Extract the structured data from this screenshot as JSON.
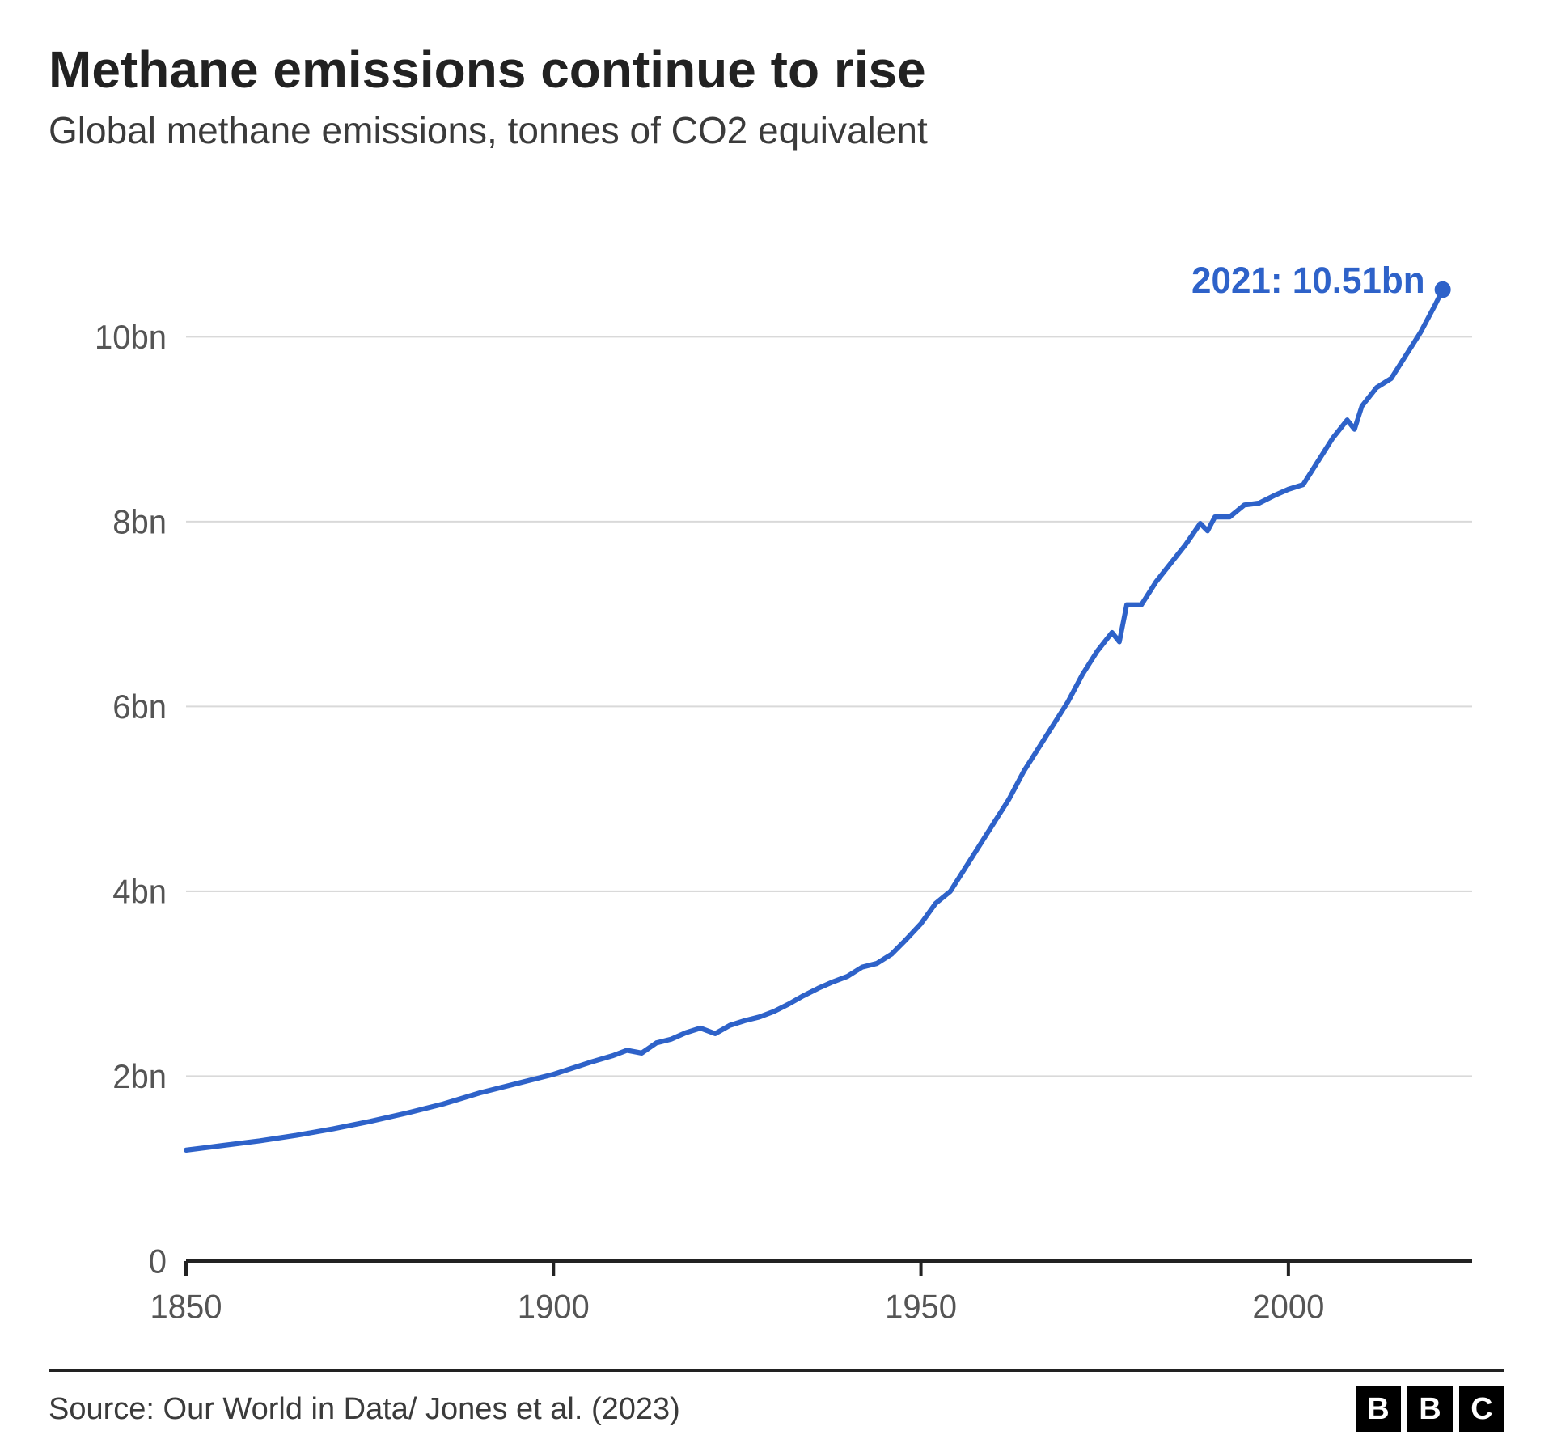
{
  "header": {
    "title": "Methane emissions continue to rise",
    "subtitle": "Global methane emissions, tonnes of CO2 equivalent"
  },
  "footer": {
    "source": "Source: Our World in Data/ Jones et al. (2023)",
    "brand_letters": [
      "B",
      "B",
      "C"
    ]
  },
  "chart": {
    "type": "line",
    "background_color": "#ffffff",
    "grid_color": "#d9d9d9",
    "axis_color": "#222222",
    "axis_label_color": "#555555",
    "line_color": "#2e62c9",
    "line_width": 6,
    "end_marker_radius": 10,
    "end_label_text": "2021: 10.51bn",
    "end_label_color": "#2e62c9",
    "end_label_fontsize": 44,
    "axis_label_fontsize": 40,
    "x": {
      "lim": [
        1850,
        2025
      ],
      "ticks": [
        1850,
        1900,
        1950,
        2000
      ],
      "tick_labels": [
        "1850",
        "1900",
        "1950",
        "2000"
      ]
    },
    "y": {
      "lim": [
        0,
        11
      ],
      "ticks": [
        0,
        2,
        4,
        6,
        8,
        10
      ],
      "tick_labels": [
        "0",
        "2bn",
        "4bn",
        "6bn",
        "8bn",
        "10bn"
      ],
      "grid_at": [
        2,
        4,
        6,
        8,
        10
      ]
    },
    "series": {
      "x": [
        1850,
        1855,
        1860,
        1865,
        1870,
        1875,
        1880,
        1885,
        1890,
        1895,
        1900,
        1905,
        1908,
        1910,
        1912,
        1914,
        1916,
        1918,
        1920,
        1922,
        1924,
        1926,
        1928,
        1930,
        1932,
        1934,
        1936,
        1938,
        1940,
        1942,
        1944,
        1946,
        1948,
        1950,
        1952,
        1954,
        1956,
        1958,
        1960,
        1962,
        1964,
        1966,
        1968,
        1970,
        1972,
        1974,
        1976,
        1977,
        1978,
        1980,
        1982,
        1984,
        1986,
        1988,
        1989,
        1990,
        1992,
        1994,
        1996,
        1998,
        2000,
        2002,
        2004,
        2006,
        2008,
        2009,
        2010,
        2012,
        2014,
        2016,
        2018,
        2020,
        2021
      ],
      "y": [
        1.2,
        1.25,
        1.3,
        1.36,
        1.43,
        1.51,
        1.6,
        1.7,
        1.82,
        1.92,
        2.02,
        2.15,
        2.22,
        2.28,
        2.25,
        2.36,
        2.4,
        2.47,
        2.52,
        2.46,
        2.55,
        2.6,
        2.64,
        2.7,
        2.78,
        2.87,
        2.95,
        3.02,
        3.08,
        3.18,
        3.22,
        3.32,
        3.48,
        3.65,
        3.87,
        4.0,
        4.25,
        4.5,
        4.75,
        5.0,
        5.3,
        5.55,
        5.8,
        6.05,
        6.35,
        6.6,
        6.8,
        6.7,
        7.1,
        7.1,
        7.35,
        7.55,
        7.75,
        7.98,
        7.9,
        8.05,
        8.05,
        8.18,
        8.2,
        8.28,
        8.35,
        8.4,
        8.65,
        8.9,
        9.1,
        9.0,
        9.25,
        9.45,
        9.55,
        9.8,
        10.05,
        10.35,
        10.51
      ]
    }
  }
}
